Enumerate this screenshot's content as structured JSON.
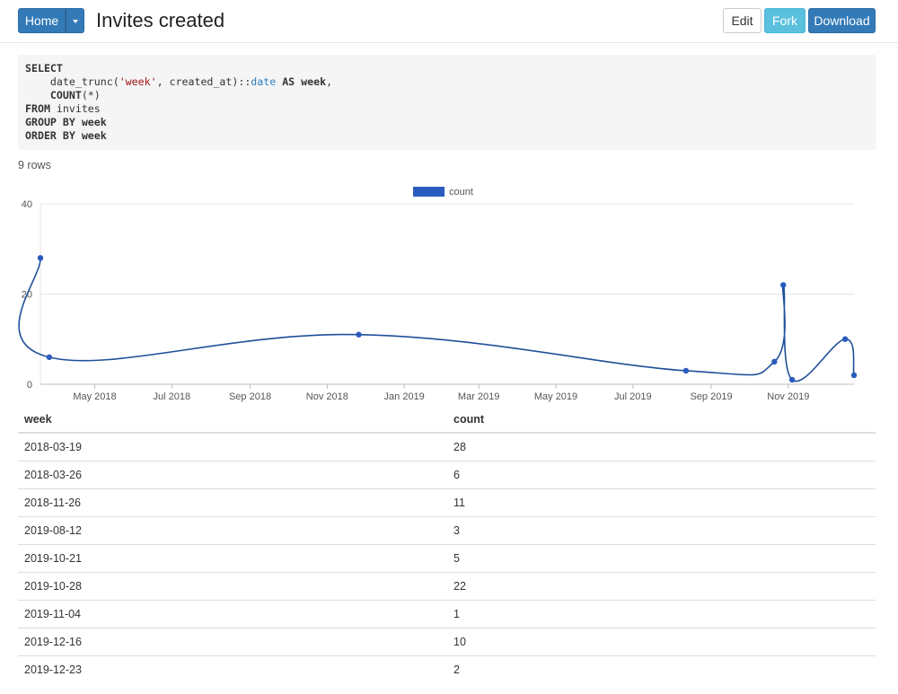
{
  "header": {
    "home_label": "Home",
    "title": "Invites created",
    "edit_label": "Edit",
    "fork_label": "Fork",
    "download_label": "Download"
  },
  "query": {
    "lines": [
      [
        {
          "t": "SELECT",
          "c": "kw"
        }
      ],
      [
        {
          "t": "    date_trunc(",
          "c": ""
        },
        {
          "t": "'week'",
          "c": "str"
        },
        {
          "t": ", created_at)::",
          "c": ""
        },
        {
          "t": "date",
          "c": "typ"
        },
        {
          "t": " ",
          "c": ""
        },
        {
          "t": "AS",
          "c": "kw"
        },
        {
          "t": " ",
          "c": ""
        },
        {
          "t": "week",
          "c": "kw"
        },
        {
          "t": ",",
          "c": ""
        }
      ],
      [
        {
          "t": "    ",
          "c": ""
        },
        {
          "t": "COUNT",
          "c": "kw"
        },
        {
          "t": "(*)",
          "c": ""
        }
      ],
      [
        {
          "t": "FROM",
          "c": "kw"
        },
        {
          "t": " invites",
          "c": ""
        }
      ],
      [
        {
          "t": "GROUP BY",
          "c": "kw"
        },
        {
          "t": " ",
          "c": ""
        },
        {
          "t": "week",
          "c": "kw"
        }
      ],
      [
        {
          "t": "ORDER BY",
          "c": "kw"
        },
        {
          "t": " ",
          "c": ""
        },
        {
          "t": "week",
          "c": "kw"
        }
      ]
    ]
  },
  "rows_count": "9 rows",
  "chart_data": {
    "type": "line",
    "x_type": "date",
    "series": [
      {
        "name": "count",
        "color": "#2a5cbf",
        "x": [
          "2018-03-19",
          "2018-03-26",
          "2018-11-26",
          "2019-08-12",
          "2019-10-21",
          "2019-10-28",
          "2019-11-04",
          "2019-12-16",
          "2019-12-23"
        ],
        "values": [
          28,
          6,
          11,
          3,
          5,
          22,
          1,
          10,
          2
        ]
      }
    ],
    "ylim": [
      0,
      40
    ],
    "yticks": [
      0,
      20,
      40
    ],
    "xlim": [
      "2018-03-19",
      "2019-12-23"
    ],
    "xticks": [
      {
        "date": "2018-05-01",
        "label": "May 2018"
      },
      {
        "date": "2018-07-01",
        "label": "Jul 2018"
      },
      {
        "date": "2018-09-01",
        "label": "Sep 2018"
      },
      {
        "date": "2018-11-01",
        "label": "Nov 2018"
      },
      {
        "date": "2019-01-01",
        "label": "Jan 2019"
      },
      {
        "date": "2019-03-01",
        "label": "Mar 2019"
      },
      {
        "date": "2019-05-01",
        "label": "May 2019"
      },
      {
        "date": "2019-07-01",
        "label": "Jul 2019"
      },
      {
        "date": "2019-09-01",
        "label": "Sep 2019"
      },
      {
        "date": "2019-11-01",
        "label": "Nov 2019"
      }
    ],
    "legend": "top-center",
    "grid": true
  },
  "table": {
    "columns": [
      "week",
      "count"
    ],
    "rows": [
      [
        "2018-03-19",
        "28"
      ],
      [
        "2018-03-26",
        "6"
      ],
      [
        "2018-11-26",
        "11"
      ],
      [
        "2019-08-12",
        "3"
      ],
      [
        "2019-10-21",
        "5"
      ],
      [
        "2019-10-28",
        "22"
      ],
      [
        "2019-11-04",
        "1"
      ],
      [
        "2019-12-16",
        "10"
      ],
      [
        "2019-12-23",
        "2"
      ]
    ]
  }
}
